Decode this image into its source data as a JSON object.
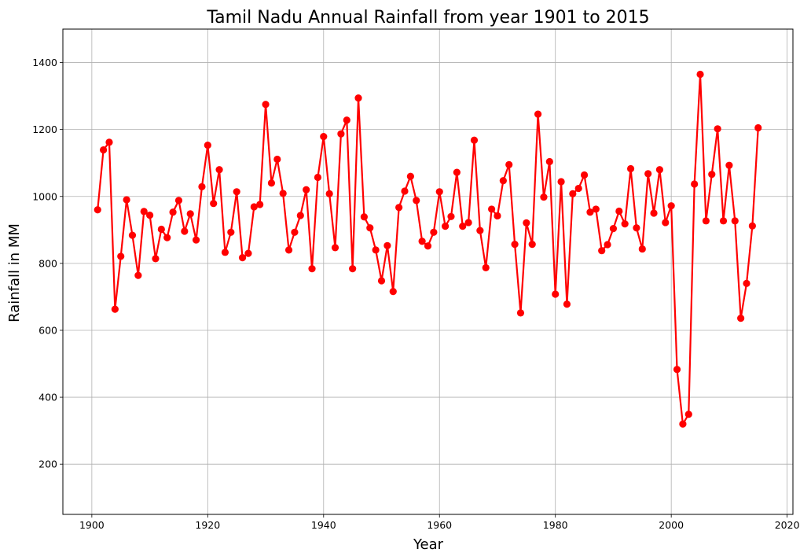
{
  "chart_data": {
    "type": "line",
    "title": "Tamil Nadu Annual Rainfall from year 1901 to 2015",
    "xlabel": "Year",
    "ylabel": "Rainfall in MM",
    "xlim": [
      1895,
      2021
    ],
    "ylim": [
      50,
      1500
    ],
    "xticks": [
      1900,
      1920,
      1940,
      1960,
      1980,
      2000,
      2020
    ],
    "yticks": [
      200,
      400,
      600,
      800,
      1000,
      1200,
      1400
    ],
    "grid": true,
    "line_color": "#ff0000",
    "marker": "circle",
    "series": [
      {
        "x": [
          1901,
          1902,
          1903,
          1904,
          1905,
          1906,
          1907,
          1908,
          1909,
          1910,
          1911,
          1912,
          1913,
          1914,
          1915,
          1916,
          1917,
          1918,
          1919,
          1920,
          1921,
          1922,
          1923,
          1924,
          1925,
          1926,
          1927,
          1928,
          1929,
          1930,
          1931,
          1932,
          1933,
          1934,
          1935,
          1936,
          1937,
          1938,
          1939,
          1940,
          1941,
          1942,
          1943,
          1944,
          1945,
          1946,
          1947,
          1948,
          1949,
          1950,
          1951,
          1952,
          1953,
          1954,
          1955,
          1956,
          1957,
          1958,
          1959,
          1960,
          1961,
          1962,
          1963,
          1964,
          1965,
          1966,
          1967,
          1968,
          1969,
          1970,
          1971,
          1972,
          1973,
          1974,
          1975,
          1976,
          1977,
          1978,
          1979,
          1980,
          1981,
          1982,
          1983,
          1984,
          1985,
          1986,
          1987,
          1988,
          1989,
          1990,
          1991,
          1992,
          1993,
          1994,
          1995,
          1996,
          1997,
          1998,
          1999,
          2000,
          2001,
          2002,
          2003,
          2004,
          2005,
          2006,
          2007,
          2008,
          2009,
          2010,
          2011,
          2012,
          2013,
          2014,
          2015
        ],
        "values": [
          960,
          1139,
          1162,
          663,
          821,
          990,
          884,
          764,
          955,
          944,
          814,
          902,
          877,
          953,
          988,
          896,
          948,
          870,
          1029,
          1153,
          979,
          1080,
          833,
          893,
          1014,
          817,
          830,
          969,
          976,
          1275,
          1040,
          1111,
          1009,
          840,
          893,
          943,
          1020,
          784,
          1057,
          1179,
          1008,
          847,
          1187,
          1228,
          784,
          1294,
          939,
          906,
          840,
          748,
          853,
          716,
          967,
          1016,
          1060,
          988,
          866,
          852,
          893,
          1014,
          911,
          940,
          1072,
          911,
          922,
          1168,
          898,
          787,
          962,
          942,
          1047,
          1095,
          857,
          652,
          921,
          857,
          1246,
          998,
          1104,
          708,
          1044,
          678,
          1008,
          1024,
          1064,
          953,
          962,
          838,
          856,
          904,
          956,
          918,
          1083,
          906,
          843,
          1068,
          950,
          1080,
          922,
          972,
          483,
          320,
          349,
          1037,
          1365,
          927,
          1066,
          1202,
          927,
          1093,
          927,
          636,
          740,
          912,
          1205
        ]
      }
    ]
  }
}
